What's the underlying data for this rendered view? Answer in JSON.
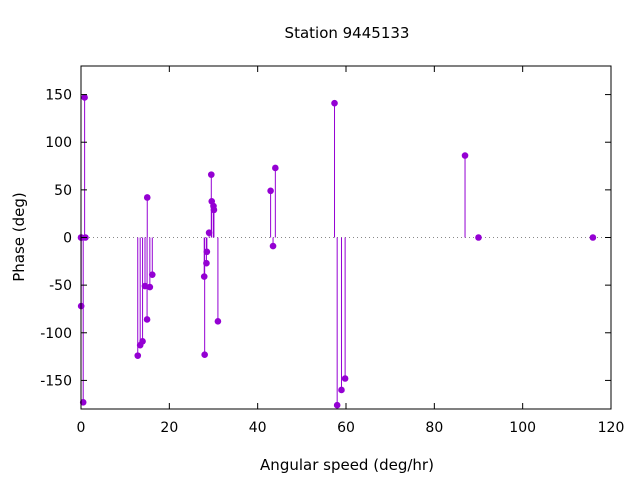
{
  "chart_data": {
    "type": "scatter",
    "style": "impulses-with-points",
    "title": "Station 9445133",
    "xlabel": "Angular speed (deg/hr)",
    "ylabel": "Phase (deg)",
    "xlim": [
      0,
      120
    ],
    "ylim": [
      -180,
      180
    ],
    "xticks": [
      0,
      20,
      40,
      60,
      80,
      100,
      120
    ],
    "yticks": [
      -150,
      -100,
      -50,
      0,
      50,
      100,
      150
    ],
    "xtick_labels": [
      "0",
      "20",
      "40",
      "60",
      "80",
      "100",
      "120"
    ],
    "ytick_labels": [
      "-150",
      "-100",
      "-50",
      "0",
      "50",
      "100",
      "150"
    ],
    "zero_line": "dotted",
    "grid": false,
    "series_color": "#9400d3",
    "points": [
      {
        "x": 0.0,
        "y": 0
      },
      {
        "x": 0.04,
        "y": -72
      },
      {
        "x": 0.08,
        "y": 0
      },
      {
        "x": 0.5,
        "y": -173
      },
      {
        "x": 0.82,
        "y": 147
      },
      {
        "x": 1.0,
        "y": 0
      },
      {
        "x": 12.85,
        "y": -124
      },
      {
        "x": 13.4,
        "y": -113
      },
      {
        "x": 13.94,
        "y": -109
      },
      {
        "x": 14.49,
        "y": -51
      },
      {
        "x": 14.96,
        "y": -86
      },
      {
        "x": 15.0,
        "y": 42
      },
      {
        "x": 15.59,
        "y": -52
      },
      {
        "x": 16.14,
        "y": -39
      },
      {
        "x": 27.9,
        "y": -41
      },
      {
        "x": 28.0,
        "y": -123
      },
      {
        "x": 28.4,
        "y": -27
      },
      {
        "x": 28.5,
        "y": -15
      },
      {
        "x": 29.0,
        "y": 5
      },
      {
        "x": 29.5,
        "y": 66
      },
      {
        "x": 29.6,
        "y": 38
      },
      {
        "x": 30.0,
        "y": 33
      },
      {
        "x": 30.1,
        "y": 29
      },
      {
        "x": 31.0,
        "y": -88
      },
      {
        "x": 42.93,
        "y": 49
      },
      {
        "x": 43.48,
        "y": -9
      },
      {
        "x": 44.0,
        "y": 73
      },
      {
        "x": 57.4,
        "y": 141
      },
      {
        "x": 58.0,
        "y": -176
      },
      {
        "x": 58.98,
        "y": -160
      },
      {
        "x": 59.8,
        "y": -148
      },
      {
        "x": 86.95,
        "y": 86
      },
      {
        "x": 90.0,
        "y": 0
      },
      {
        "x": 115.9,
        "y": 0
      }
    ]
  }
}
